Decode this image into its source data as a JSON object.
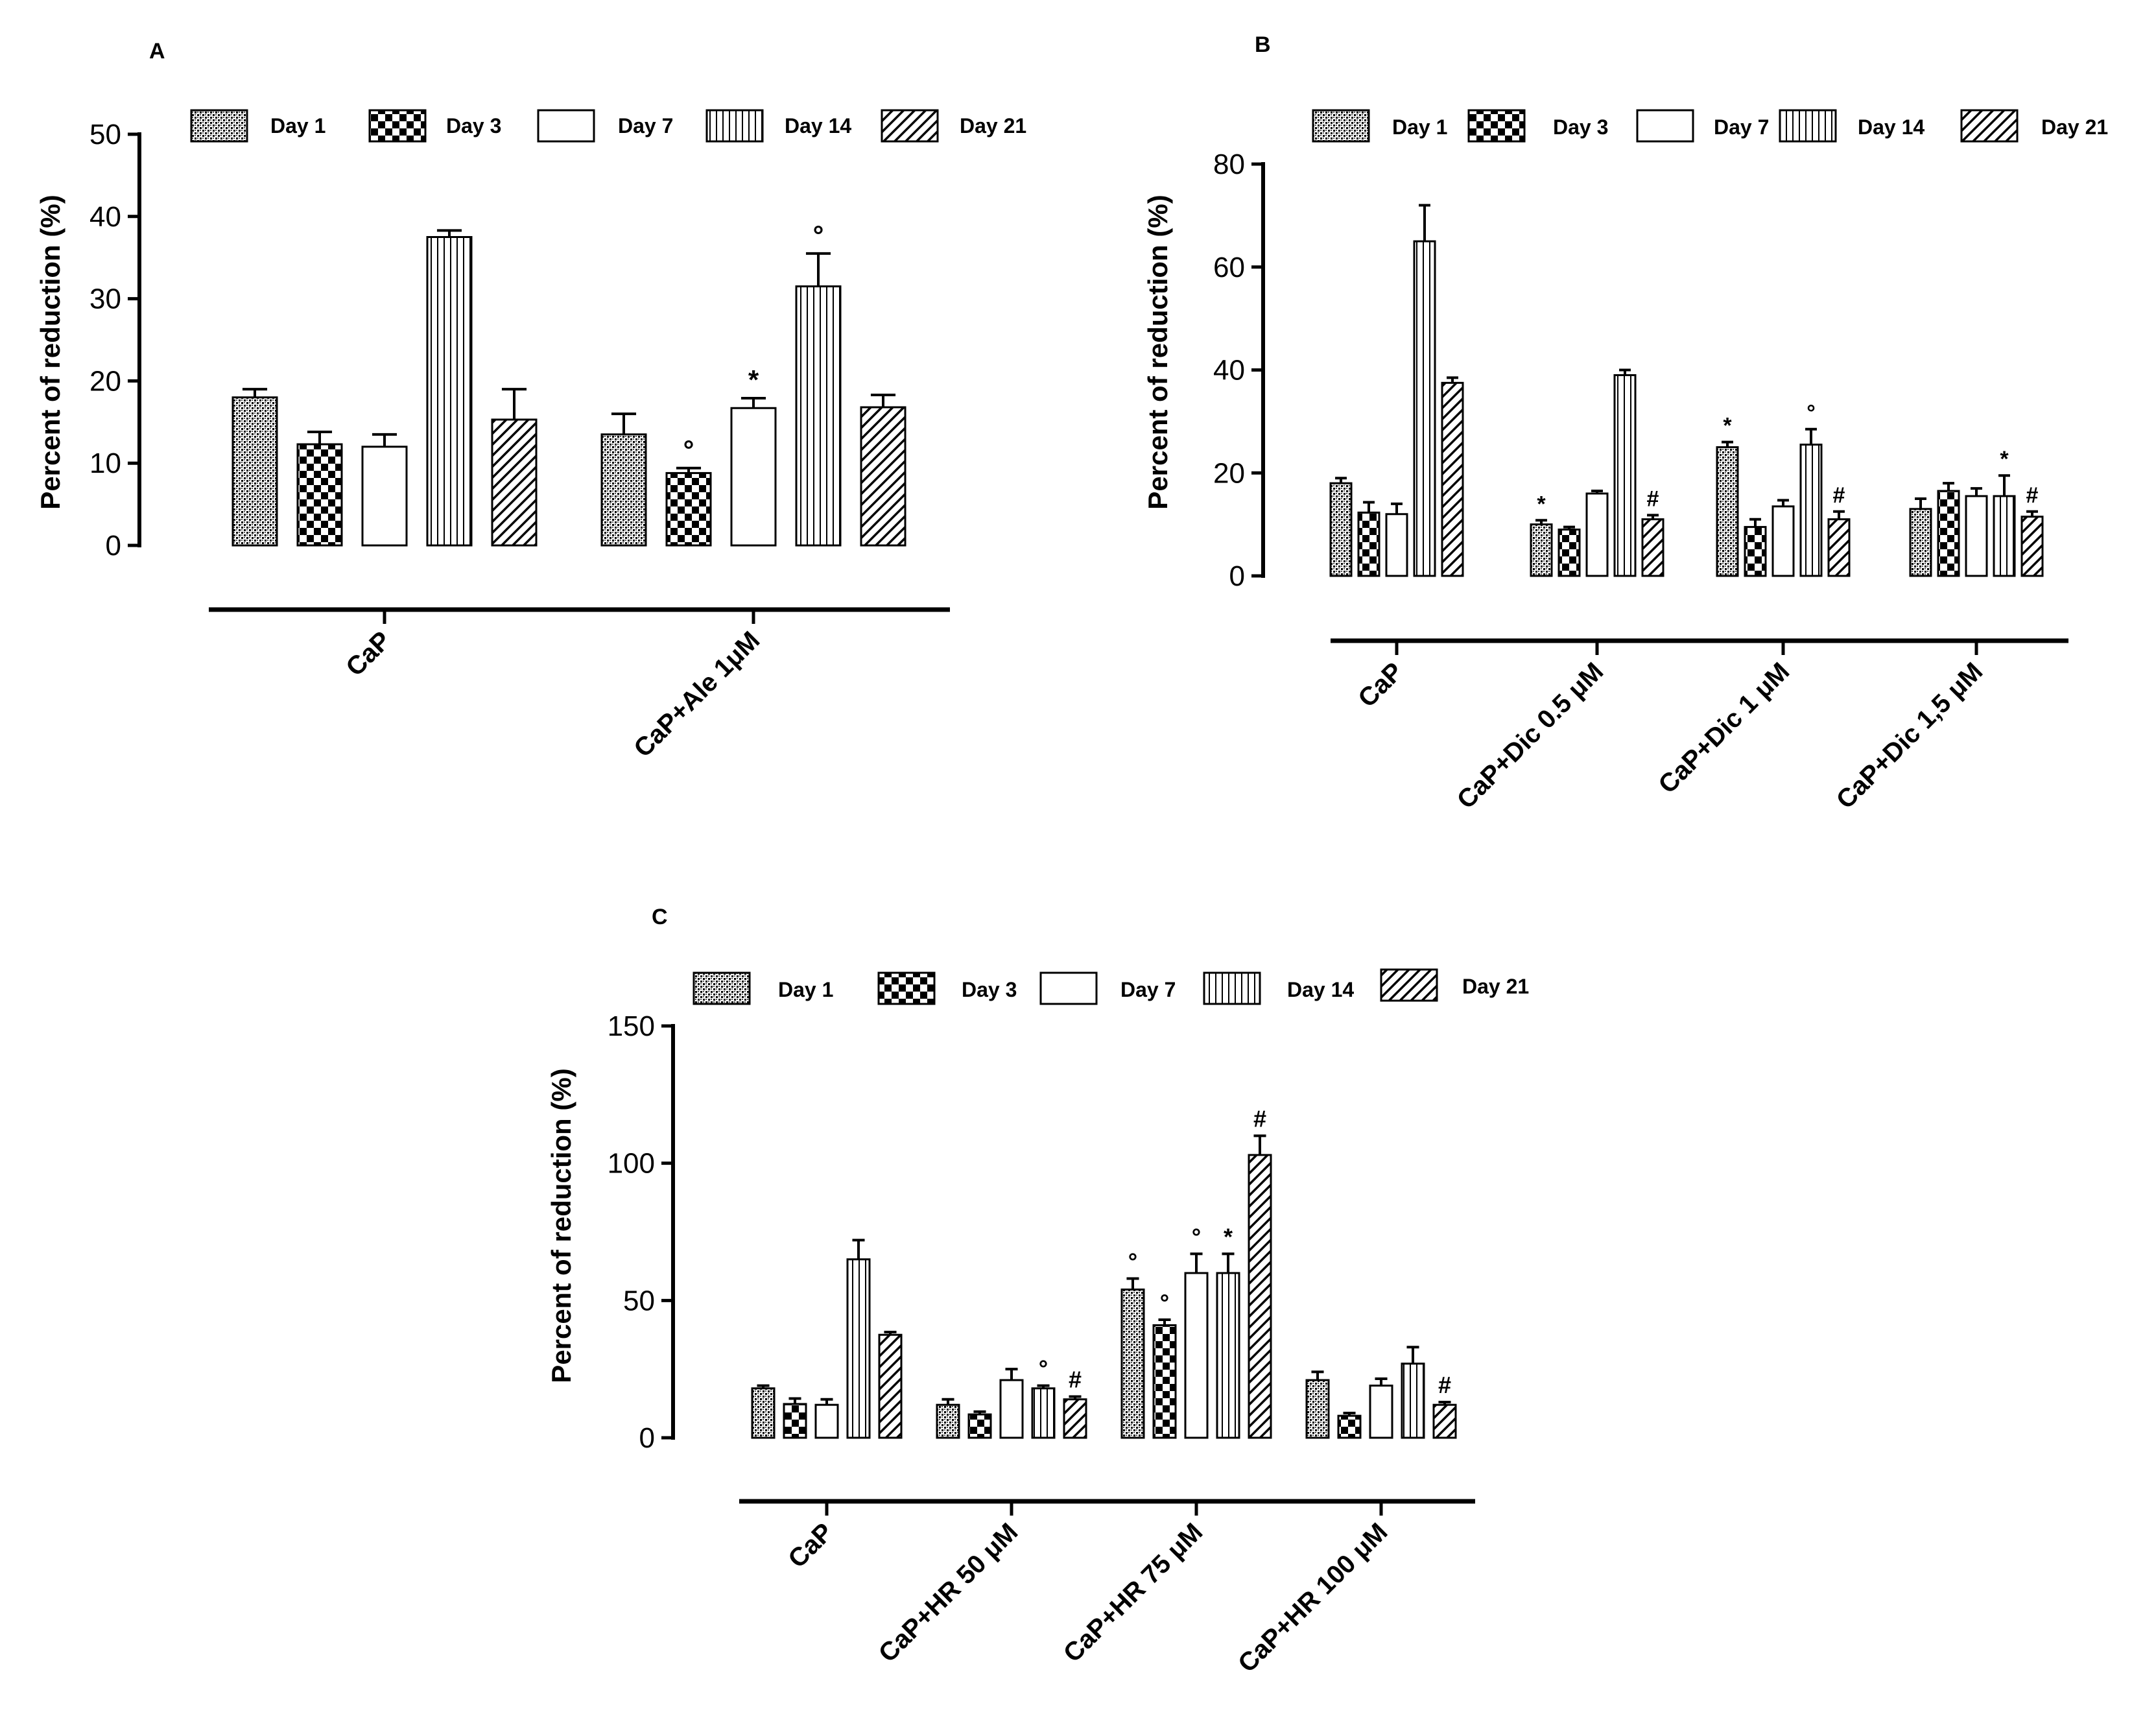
{
  "figure": {
    "day_unit": "Day"
  },
  "chart_data": [
    {
      "panel_label": "A",
      "type": "bar",
      "ylabel": "Percent of reduction (%)",
      "ylim": [
        0,
        50
      ],
      "yticks": [
        0,
        10,
        20,
        30,
        40,
        50
      ],
      "legend": [
        "Day 1",
        "Day 3",
        "Day 7",
        "Day 14",
        "Day 21"
      ],
      "categories": [
        "CaP",
        "CaP+Ale 1μM"
      ],
      "series": [
        {
          "name": "Day 1",
          "values": [
            18,
            13.5
          ],
          "errors": [
            1,
            2.5
          ],
          "marks": [
            "",
            ""
          ]
        },
        {
          "name": "Day 3",
          "values": [
            12.3,
            8.8
          ],
          "errors": [
            1.5,
            0.6
          ],
          "marks": [
            "",
            "°"
          ]
        },
        {
          "name": "Day 7",
          "values": [
            12,
            16.7
          ],
          "errors": [
            1.5,
            1.2
          ],
          "marks": [
            "",
            "*"
          ]
        },
        {
          "name": "Day 14",
          "values": [
            37.5,
            31.5
          ],
          "errors": [
            0.8,
            4
          ],
          "marks": [
            "",
            "°"
          ]
        },
        {
          "name": "Day 21",
          "values": [
            15.3,
            16.8
          ],
          "errors": [
            3.7,
            1.5
          ],
          "marks": [
            "",
            ""
          ]
        }
      ]
    },
    {
      "panel_label": "B",
      "type": "bar",
      "ylabel": "Percent of reduction (%)",
      "ylim": [
        0,
        80
      ],
      "yticks": [
        0,
        20,
        40,
        60,
        80
      ],
      "legend": [
        "Day 1",
        "Day 3",
        "Day 7",
        "Day 14",
        "Day 21"
      ],
      "categories": [
        "CaP",
        "CaP+Dic 0.5 μM",
        "CaP+Dic 1 μM",
        "CaP+Dic 1,5 μM"
      ],
      "series": [
        {
          "name": "Day 1",
          "values": [
            18,
            10,
            25,
            13
          ],
          "errors": [
            1,
            0.8,
            1,
            2
          ],
          "marks": [
            "",
            "*",
            "*",
            ""
          ]
        },
        {
          "name": "Day 3",
          "values": [
            12.3,
            9,
            9.5,
            16.5
          ],
          "errors": [
            2,
            0.5,
            1.5,
            1.5
          ],
          "marks": [
            "",
            "",
            "",
            ""
          ]
        },
        {
          "name": "Day 7",
          "values": [
            12,
            16,
            13.5,
            15.5
          ],
          "errors": [
            2,
            0.5,
            1.2,
            1.5
          ],
          "marks": [
            "",
            "",
            "",
            ""
          ]
        },
        {
          "name": "Day 14",
          "values": [
            65,
            39,
            25.5,
            15.5
          ],
          "errors": [
            7,
            1,
            3,
            4
          ],
          "marks": [
            "",
            "",
            "°",
            "*"
          ]
        },
        {
          "name": "Day 21",
          "values": [
            37.5,
            11,
            11,
            11.5
          ],
          "errors": [
            1,
            0.8,
            1.5,
            1
          ],
          "marks": [
            "",
            "#",
            "#",
            "#"
          ]
        }
      ]
    },
    {
      "panel_label": "C",
      "type": "bar",
      "ylabel": "Percent of reduction (%)",
      "ylim": [
        0,
        150
      ],
      "yticks": [
        0,
        50,
        100,
        150
      ],
      "legend": [
        "Day 1",
        "Day 3",
        "Day 7",
        "Day 14",
        "Day 21"
      ],
      "categories": [
        "CaP",
        "CaP+HR 50 μM",
        "CaP+HR 75 μM",
        "CaP+HR 100 μM"
      ],
      "series": [
        {
          "name": "Day 1",
          "values": [
            18,
            12,
            54,
            21
          ],
          "errors": [
            1,
            2,
            4,
            3
          ],
          "marks": [
            "",
            "",
            "°",
            ""
          ]
        },
        {
          "name": "Day 3",
          "values": [
            12.3,
            8.5,
            41,
            8
          ],
          "errors": [
            2,
            1,
            2,
            1
          ],
          "marks": [
            "",
            "",
            "°",
            ""
          ]
        },
        {
          "name": "Day 7",
          "values": [
            12,
            21,
            60,
            19
          ],
          "errors": [
            2,
            4,
            7,
            2.5
          ],
          "marks": [
            "",
            "",
            "°",
            ""
          ]
        },
        {
          "name": "Day 14",
          "values": [
            65,
            18,
            60,
            27
          ],
          "errors": [
            7,
            1,
            7,
            6
          ],
          "marks": [
            "",
            "°",
            "*",
            ""
          ]
        },
        {
          "name": "Day 21",
          "values": [
            37.5,
            14,
            103,
            12
          ],
          "errors": [
            1,
            1,
            7,
            1
          ],
          "marks": [
            "",
            "#",
            "#",
            "#"
          ]
        }
      ]
    }
  ]
}
